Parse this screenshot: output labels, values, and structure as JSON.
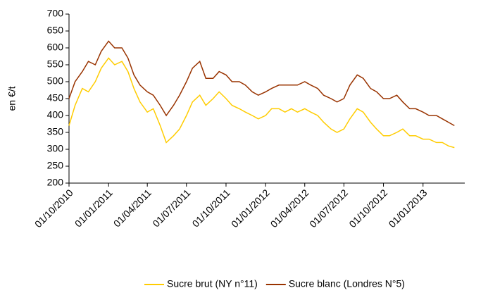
{
  "chart_data": {
    "type": "line",
    "ylabel": "en €/t",
    "x": [
      "01/10/2010",
      "15/10/2010",
      "01/11/2010",
      "15/11/2010",
      "01/12/2010",
      "15/12/2010",
      "01/01/2011",
      "15/01/2011",
      "01/02/2011",
      "15/02/2011",
      "01/03/2011",
      "15/03/2011",
      "01/04/2011",
      "15/04/2011",
      "01/05/2011",
      "15/05/2011",
      "01/06/2011",
      "15/06/2011",
      "01/07/2011",
      "15/07/2011",
      "01/08/2011",
      "15/08/2011",
      "01/09/2011",
      "15/09/2011",
      "01/10/2011",
      "15/10/2011",
      "01/11/2011",
      "15/11/2011",
      "01/12/2011",
      "15/12/2011",
      "01/01/2012",
      "15/01/2012",
      "01/02/2012",
      "15/02/2012",
      "01/03/2012",
      "15/03/2012",
      "01/04/2012",
      "15/04/2012",
      "01/05/2012",
      "15/05/2012",
      "01/06/2012",
      "15/06/2012",
      "01/07/2012",
      "15/07/2012",
      "01/08/2012",
      "15/08/2012",
      "01/09/2012",
      "15/09/2012",
      "01/10/2012",
      "15/10/2012",
      "01/11/2012",
      "15/11/2012",
      "01/12/2012",
      "15/12/2012",
      "01/01/2013",
      "15/01/2013",
      "01/02/2013",
      "15/02/2013",
      "01/03/2013",
      "15/03/2013"
    ],
    "series": [
      {
        "name": "Sucre brut (NY n°11)",
        "color": "#ffcc00",
        "values": [
          370,
          430,
          480,
          470,
          500,
          540,
          570,
          550,
          560,
          530,
          480,
          440,
          410,
          420,
          370,
          320,
          340,
          360,
          400,
          440,
          460,
          430,
          450,
          470,
          450,
          430,
          420,
          410,
          400,
          390,
          400,
          420,
          420,
          410,
          420,
          410,
          420,
          410,
          400,
          380,
          360,
          350,
          360,
          390,
          420,
          410,
          380,
          360,
          340,
          340,
          350,
          360,
          340,
          340,
          330,
          330,
          320,
          320,
          310,
          305
        ]
      },
      {
        "name": "Sucre blanc (Londres N°5)",
        "color": "#993300",
        "values": [
          450,
          500,
          530,
          560,
          550,
          590,
          620,
          600,
          600,
          570,
          520,
          490,
          470,
          460,
          430,
          400,
          430,
          460,
          500,
          540,
          560,
          510,
          510,
          530,
          520,
          500,
          500,
          490,
          470,
          460,
          470,
          480,
          490,
          490,
          490,
          490,
          500,
          490,
          480,
          460,
          450,
          440,
          450,
          490,
          520,
          510,
          480,
          470,
          450,
          450,
          460,
          440,
          420,
          420,
          410,
          400,
          400,
          390,
          380,
          370
        ]
      }
    ],
    "xlim": [
      "01/10/2010",
      "08/04/2013"
    ],
    "xticks": [
      "01/10/2010",
      "01/01/2011",
      "01/04/2011",
      "01/07/2011",
      "01/10/2011",
      "01/01/2012",
      "01/04/2012",
      "01/07/2012",
      "01/10/2012",
      "01/01/2013"
    ],
    "ylim": [
      200,
      700
    ],
    "yticks": [
      200,
      250,
      300,
      350,
      400,
      450,
      500,
      550,
      600,
      650,
      700
    ],
    "legend": "bottom"
  }
}
